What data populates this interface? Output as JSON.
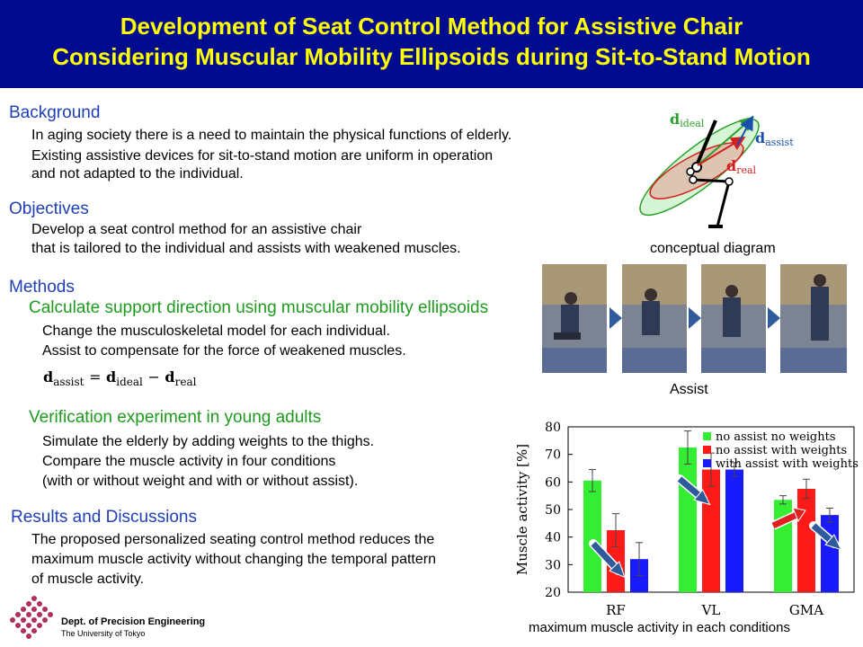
{
  "header": {
    "title_line1": "Development of Seat Control Method for Assistive Chair",
    "title_line2": "Considering Muscular Mobility Ellipsoids during Sit-to-Stand Motion"
  },
  "background": {
    "heading": "Background",
    "lines": [
      "In aging society there is a need to maintain the physical functions of elderly.",
      "Existing assistive devices for sit-to-stand motion are uniform in operation",
      "and not adapted to the individual."
    ]
  },
  "objectives": {
    "heading": "Objectives",
    "lines": [
      "Develop a seat control method for an assistive chair",
      "that is tailored to the individual and assists with weakened muscles."
    ]
  },
  "methods": {
    "heading": "Methods",
    "sub1": "Calculate support direction using muscular mobility ellipsoids",
    "sub1_lines": [
      "Change the musculoskeletal model for each individual.",
      "Assist to compensate for the force of weakened muscles."
    ],
    "formula": {
      "d": "d",
      "assist": "assist",
      "ideal": "ideal",
      "real": "real",
      "eq": "=",
      "minus": "−"
    },
    "sub2": "Verification experiment in young adults",
    "sub2_lines": [
      "Simulate the elderly by adding weights to the thighs.",
      "Compare the muscle activity in four conditions",
      "(with or without weight and with or without assist)."
    ]
  },
  "results": {
    "heading": "Results and Discussions",
    "lines": [
      "The proposed personalized seating control method reduces the",
      "maximum muscle activity without changing the temporal pattern",
      "of muscle activity."
    ]
  },
  "logo": {
    "line1": "Dept. of Precision Engineering",
    "line2": "The University of Tokyo"
  },
  "diagram": {
    "caption": "conceptual diagram",
    "label_ideal": "ideal",
    "label_assist": "assist",
    "label_real": "real",
    "label_d": "d"
  },
  "photos": {
    "caption": "Assist"
  },
  "colors": {
    "header_bg": "#000b8f",
    "title": "#ffff00",
    "heading_blue": "#1f3fb7",
    "heading_green": "#1e9b1e",
    "arrow_blue": "#2f5b9c"
  },
  "chart_data": {
    "type": "bar",
    "categories": [
      "RF",
      "VL",
      "GMA"
    ],
    "series": [
      {
        "name": "no assist no weights",
        "color": "#33ee33",
        "values": [
          60.5,
          72.5,
          53.5
        ],
        "errors": [
          4.0,
          6.0,
          1.5
        ]
      },
      {
        "name": "no assist with weights",
        "color": "#ff1a1a",
        "values": [
          42.5,
          64.5,
          57.5
        ],
        "errors": [
          6.0,
          6.0,
          3.5
        ]
      },
      {
        "name": "with assist with weights",
        "color": "#1a1aff",
        "values": [
          32,
          64.5,
          48
        ],
        "errors": [
          6.0,
          2.5,
          2.5
        ]
      }
    ],
    "ylabel": "Muscle activity [%]",
    "xlabel": "maximum muscle activity in each conditions",
    "ylim": [
      20,
      80
    ],
    "yticks": [
      20,
      30,
      40,
      50,
      60,
      70,
      80
    ],
    "legend": "top-right"
  }
}
